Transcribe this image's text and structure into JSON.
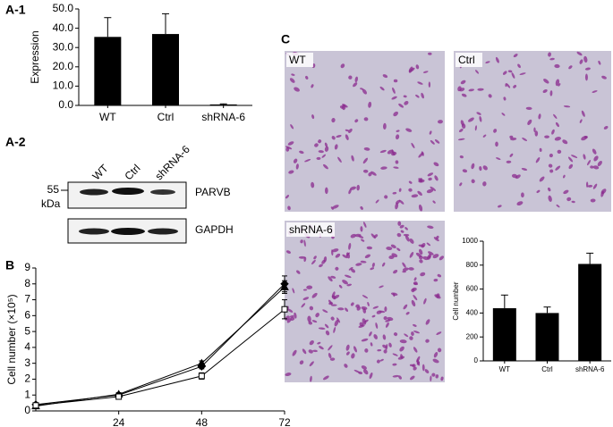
{
  "panels": {
    "a1": "A-1",
    "a2": "A-2",
    "b": "B",
    "c": "C"
  },
  "blot": {
    "lanes": [
      "WT",
      "Ctrl",
      "shRNA-6"
    ],
    "marker": "55",
    "marker_unit": "kDa",
    "bands": [
      "PARVB",
      "GAPDH"
    ]
  },
  "micrographs": [
    "WT",
    "Ctrl",
    "shRNA-6"
  ],
  "chart_data": [
    {
      "type": "bar",
      "y_label": "Expression",
      "categories": [
        "WT",
        "Ctrl",
        "shRNA-6"
      ],
      "values": [
        35.5,
        37,
        0.5
      ],
      "errors": [
        10,
        10.5,
        0.3
      ],
      "color": "#000000",
      "ylim": [
        0,
        50
      ],
      "yticks": [
        {
          "value": 0,
          "label": "0.0"
        },
        {
          "value": 10,
          "label": "10.0"
        },
        {
          "value": 20,
          "label": "20.0"
        },
        {
          "value": 30,
          "label": "30.0"
        },
        {
          "value": 40,
          "label": "40.0"
        },
        {
          "value": 50,
          "label": "50.0"
        }
      ]
    },
    {
      "type": "line",
      "y_label": "Cell number (×10⁵)",
      "x": [
        0,
        24,
        48,
        72
      ],
      "series": [
        {
          "color": "#000000",
          "marker": "diamond",
          "values": [
            0.4,
            1.0,
            2.8,
            8.0
          ],
          "errors": [
            0.1,
            0.1,
            0.15,
            0.5
          ]
        },
        {
          "color": "#000000",
          "marker": "triangle",
          "values": [
            0.3,
            1.05,
            3.0,
            7.8
          ],
          "errors": [
            0.1,
            0.1,
            0.15,
            0.4
          ]
        },
        {
          "color": "#000000",
          "marker": "square",
          "values": [
            0.35,
            0.9,
            2.2,
            6.4
          ],
          "errors": [
            0.1,
            0.1,
            0.2,
            0.6
          ]
        }
      ],
      "xlim": [
        0,
        72
      ],
      "xticks": [
        24,
        48,
        72
      ],
      "ylim": [
        0,
        9
      ],
      "yticks": [
        0,
        1,
        2,
        3,
        4,
        5,
        6,
        7,
        8,
        9
      ]
    },
    {
      "type": "bar",
      "y_label": "Cell number",
      "categories": [
        "WT",
        "Ctrl",
        "shRNA-6"
      ],
      "values": [
        440,
        400,
        810
      ],
      "errors": [
        110,
        50,
        90
      ],
      "color": "#000000",
      "ylim": [
        0,
        1000
      ],
      "yticks": [
        0,
        200,
        400,
        600,
        800,
        1000
      ]
    }
  ]
}
